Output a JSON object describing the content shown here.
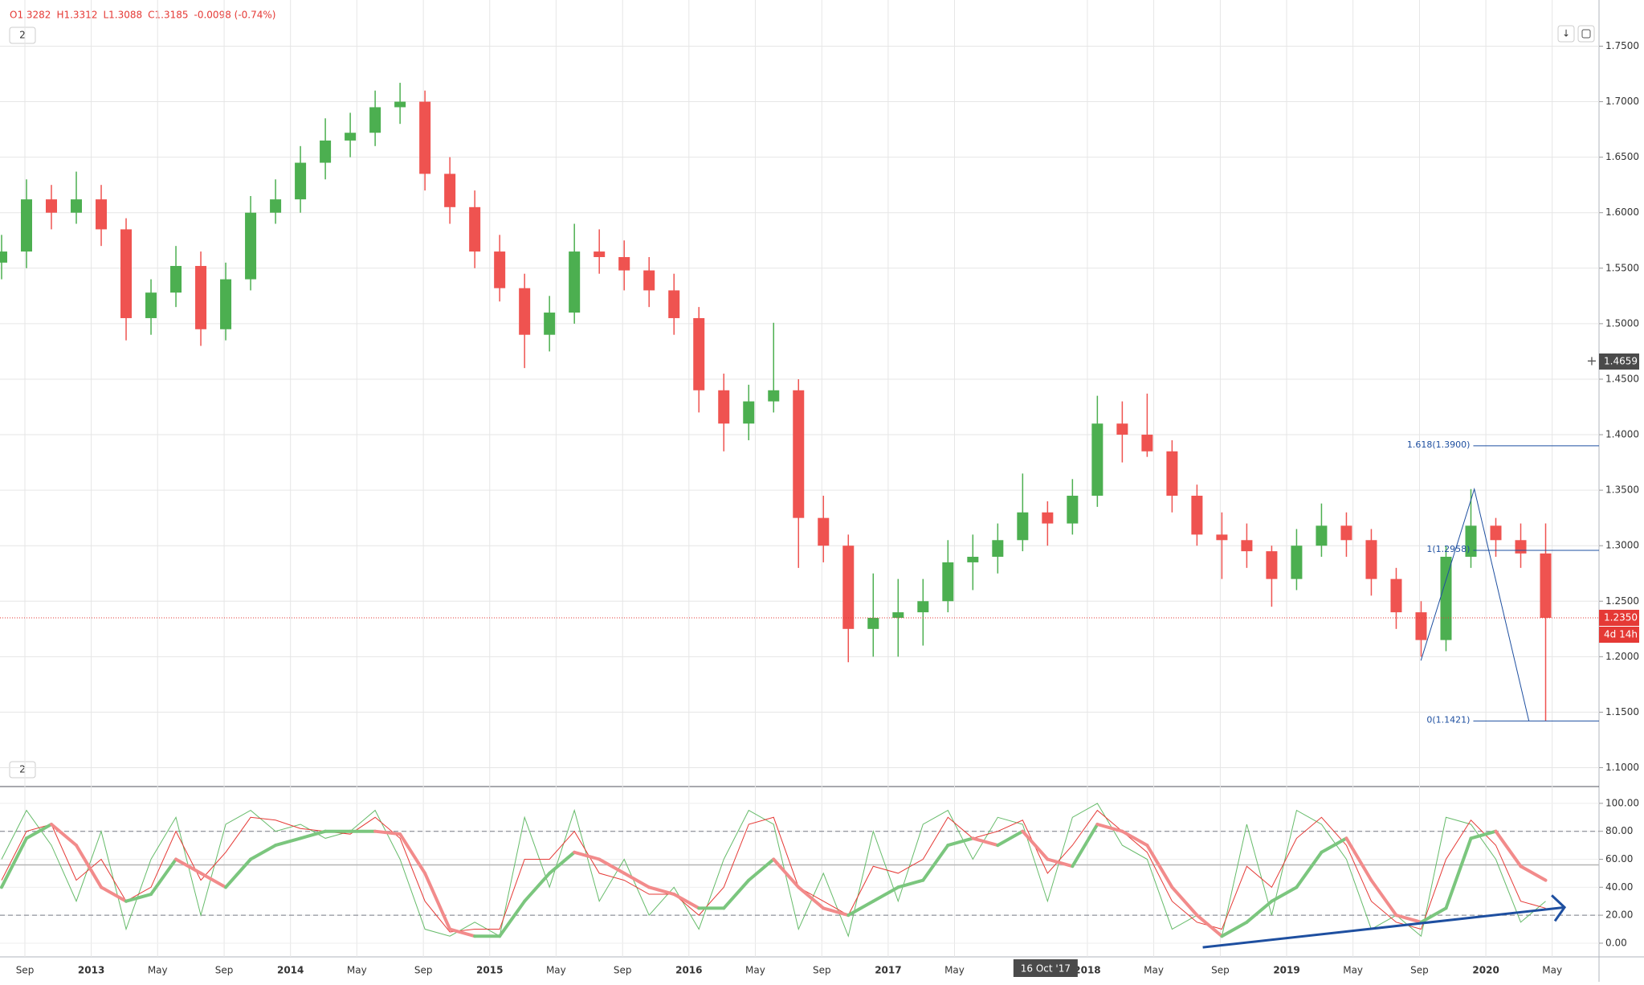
{
  "header": {
    "items": [
      "O1.3282",
      "H1.3312",
      "L1.3088",
      "C1.3185",
      "-0.0098 (-0.74%)"
    ],
    "pane_button": "2",
    "osc_button": "2"
  },
  "chart_data": {
    "type": "candlestick",
    "xlim": [
      2012.542,
      2020.568
    ],
    "xticks": [
      {
        "value": 2012.667,
        "label": "Sep"
      },
      {
        "value": 2013,
        "label": "2013"
      },
      {
        "value": 2013.333,
        "label": "May"
      },
      {
        "value": 2013.667,
        "label": "Sep"
      },
      {
        "value": 2014,
        "label": "2014"
      },
      {
        "value": 2014.333,
        "label": "May"
      },
      {
        "value": 2014.667,
        "label": "Sep"
      },
      {
        "value": 2015,
        "label": "2015"
      },
      {
        "value": 2015.333,
        "label": "May"
      },
      {
        "value": 2015.667,
        "label": "Sep"
      },
      {
        "value": 2016,
        "label": "2016"
      },
      {
        "value": 2016.333,
        "label": "May"
      },
      {
        "value": 2016.667,
        "label": "Sep"
      },
      {
        "value": 2017,
        "label": "2017"
      },
      {
        "value": 2017.333,
        "label": "May"
      },
      {
        "value": 2018,
        "label": "2018"
      },
      {
        "value": 2018.333,
        "label": "May"
      },
      {
        "value": 2018.667,
        "label": "Sep"
      },
      {
        "value": 2019,
        "label": "2019"
      },
      {
        "value": 2019.333,
        "label": "May"
      },
      {
        "value": 2019.667,
        "label": "Sep"
      },
      {
        "value": 2020,
        "label": "2020"
      },
      {
        "value": 2020.333,
        "label": "May"
      }
    ],
    "ylim": [
      1.083,
      1.7916
    ],
    "yticks": [
      {
        "value": 1.1,
        "label": "1.1000"
      },
      {
        "value": 1.15,
        "label": "1.1500"
      },
      {
        "value": 1.2,
        "label": "1.2000"
      },
      {
        "value": 1.25,
        "label": "1.2500"
      },
      {
        "value": 1.3,
        "label": "1.3000"
      },
      {
        "value": 1.35,
        "label": "1.3500"
      },
      {
        "value": 1.4,
        "label": "1.4000"
      },
      {
        "value": 1.45,
        "label": "1.4500"
      },
      {
        "value": 1.5,
        "label": "1.5000"
      },
      {
        "value": 1.55,
        "label": "1.5500"
      },
      {
        "value": 1.6,
        "label": "1.6000"
      },
      {
        "value": 1.65,
        "label": "1.6500"
      },
      {
        "value": 1.7,
        "label": "1.7000"
      },
      {
        "value": 1.75,
        "label": "1.7500"
      }
    ],
    "grid": true,
    "up_color": "#4caf50",
    "down_color": "#ef5350",
    "x": [
      2012.55,
      2012.675,
      2012.8,
      2012.925,
      2013.05,
      2013.175,
      2013.3,
      2013.425,
      2013.55,
      2013.675,
      2013.8,
      2013.925,
      2014.05,
      2014.175,
      2014.3,
      2014.425,
      2014.55,
      2014.675,
      2014.8,
      2014.925,
      2015.05,
      2015.175,
      2015.3,
      2015.425,
      2015.55,
      2015.675,
      2015.8,
      2015.925,
      2016.05,
      2016.175,
      2016.3,
      2016.425,
      2016.55,
      2016.675,
      2016.8,
      2016.925,
      2017.05,
      2017.175,
      2017.3,
      2017.425,
      2017.55,
      2017.675,
      2017.8,
      2017.925,
      2018.05,
      2018.175,
      2018.3,
      2018.425,
      2018.55,
      2018.675,
      2018.8,
      2018.925,
      2019.05,
      2019.175,
      2019.3,
      2019.425,
      2019.55,
      2019.675,
      2019.8,
      2019.925,
      2020.05,
      2020.175,
      2020.3
    ],
    "ohlc": [
      [
        1.555,
        1.58,
        1.54,
        1.565
      ],
      [
        1.565,
        1.63,
        1.55,
        1.612
      ],
      [
        1.612,
        1.625,
        1.585,
        1.6
      ],
      [
        1.6,
        1.637,
        1.59,
        1.612
      ],
      [
        1.612,
        1.625,
        1.57,
        1.585
      ],
      [
        1.585,
        1.595,
        1.485,
        1.505
      ],
      [
        1.505,
        1.54,
        1.49,
        1.528
      ],
      [
        1.528,
        1.57,
        1.515,
        1.552
      ],
      [
        1.552,
        1.565,
        1.48,
        1.495
      ],
      [
        1.495,
        1.555,
        1.485,
        1.54
      ],
      [
        1.54,
        1.615,
        1.53,
        1.6
      ],
      [
        1.6,
        1.63,
        1.59,
        1.612
      ],
      [
        1.612,
        1.66,
        1.6,
        1.645
      ],
      [
        1.645,
        1.685,
        1.63,
        1.665
      ],
      [
        1.665,
        1.69,
        1.65,
        1.672
      ],
      [
        1.672,
        1.71,
        1.66,
        1.695
      ],
      [
        1.695,
        1.717,
        1.68,
        1.7
      ],
      [
        1.7,
        1.71,
        1.62,
        1.635
      ],
      [
        1.635,
        1.65,
        1.59,
        1.605
      ],
      [
        1.605,
        1.62,
        1.55,
        1.565
      ],
      [
        1.565,
        1.58,
        1.52,
        1.532
      ],
      [
        1.532,
        1.545,
        1.46,
        1.49
      ],
      [
        1.49,
        1.525,
        1.475,
        1.51
      ],
      [
        1.51,
        1.59,
        1.5,
        1.565
      ],
      [
        1.565,
        1.585,
        1.545,
        1.56
      ],
      [
        1.56,
        1.575,
        1.53,
        1.548
      ],
      [
        1.548,
        1.56,
        1.515,
        1.53
      ],
      [
        1.53,
        1.545,
        1.49,
        1.505
      ],
      [
        1.505,
        1.515,
        1.42,
        1.44
      ],
      [
        1.44,
        1.455,
        1.385,
        1.41
      ],
      [
        1.41,
        1.445,
        1.395,
        1.43
      ],
      [
        1.43,
        1.5008,
        1.42,
        1.44
      ],
      [
        1.44,
        1.45,
        1.28,
        1.325
      ],
      [
        1.325,
        1.345,
        1.285,
        1.3
      ],
      [
        1.3,
        1.31,
        1.195,
        1.225
      ],
      [
        1.225,
        1.275,
        1.2,
        1.235
      ],
      [
        1.235,
        1.27,
        1.2,
        1.24
      ],
      [
        1.24,
        1.27,
        1.21,
        1.25
      ],
      [
        1.25,
        1.305,
        1.24,
        1.285
      ],
      [
        1.285,
        1.31,
        1.26,
        1.29
      ],
      [
        1.29,
        1.32,
        1.275,
        1.305
      ],
      [
        1.305,
        1.365,
        1.295,
        1.33
      ],
      [
        1.33,
        1.34,
        1.3,
        1.32
      ],
      [
        1.32,
        1.36,
        1.31,
        1.345
      ],
      [
        1.345,
        1.435,
        1.335,
        1.41
      ],
      [
        1.41,
        1.43,
        1.375,
        1.4
      ],
      [
        1.4,
        1.437,
        1.38,
        1.385
      ],
      [
        1.385,
        1.395,
        1.33,
        1.345
      ],
      [
        1.345,
        1.355,
        1.3,
        1.31
      ],
      [
        1.31,
        1.33,
        1.27,
        1.305
      ],
      [
        1.305,
        1.32,
        1.28,
        1.295
      ],
      [
        1.295,
        1.3,
        1.245,
        1.27
      ],
      [
        1.27,
        1.315,
        1.26,
        1.3
      ],
      [
        1.3,
        1.338,
        1.29,
        1.318
      ],
      [
        1.318,
        1.33,
        1.29,
        1.305
      ],
      [
        1.305,
        1.315,
        1.255,
        1.27
      ],
      [
        1.27,
        1.28,
        1.225,
        1.24
      ],
      [
        1.24,
        1.25,
        1.2,
        1.215
      ],
      [
        1.215,
        1.3,
        1.205,
        1.29
      ],
      [
        1.29,
        1.351,
        1.28,
        1.318
      ],
      [
        1.318,
        1.325,
        1.29,
        1.305
      ],
      [
        1.305,
        1.32,
        1.28,
        1.293
      ],
      [
        1.293,
        1.32,
        1.1421,
        1.235
      ]
    ],
    "price_label": {
      "value": 1.235,
      "label": "1.2350"
    },
    "countdown": "4d 14h",
    "crosshair": {
      "value": 1.4659,
      "label": "1.4659",
      "x_label": "16 Oct '17",
      "x_value": 2017.79
    },
    "fib": {
      "x_start": 2019.937,
      "color": "#1e4fa0",
      "levels": [
        {
          "value": 1.39,
          "label": "1.618(1.3900)"
        },
        {
          "value": 1.2958,
          "label": "1(1.2958)"
        },
        {
          "value": 1.1421,
          "label": "0(1.1421)"
        }
      ],
      "zigzag_x": [
        2019.674,
        2019.942,
        2020.216
      ],
      "zigzag_y": [
        1.1965,
        1.351,
        1.1421
      ]
    },
    "oscillator": {
      "ylim": [
        -9.8,
        112
      ],
      "yticks": [
        {
          "value": 0,
          "label": "0.00"
        },
        {
          "value": 20,
          "label": "20.00"
        },
        {
          "value": 40,
          "label": "40.00"
        },
        {
          "value": 60,
          "label": "60.00"
        },
        {
          "value": 80,
          "label": "80.00"
        },
        {
          "value": 100,
          "label": "100.00"
        }
      ],
      "levels": [
        80,
        20
      ],
      "mid_level": 56,
      "series": [
        {
          "color": "#66bb6a",
          "width": 1,
          "values": [
            60,
            95,
            70,
            30,
            80,
            10,
            60,
            90,
            20,
            85,
            95,
            80,
            85,
            75,
            80,
            95,
            60,
            10,
            5,
            15,
            5,
            90,
            40,
            95,
            30,
            60,
            20,
            40,
            10,
            60,
            95,
            85,
            10,
            50,
            5,
            80,
            30,
            85,
            95,
            60,
            90,
            85,
            30,
            90,
            100,
            70,
            60,
            10,
            20,
            5,
            85,
            20,
            95,
            85,
            60,
            10,
            20,
            5,
            90,
            85,
            60,
            15,
            30
          ]
        },
        {
          "color": "#e53935",
          "width": 1,
          "values": [
            45,
            80,
            85,
            45,
            60,
            30,
            40,
            80,
            45,
            65,
            90,
            88,
            82,
            80,
            78,
            90,
            75,
            30,
            8,
            10,
            10,
            60,
            60,
            80,
            50,
            45,
            35,
            35,
            20,
            40,
            85,
            90,
            40,
            30,
            20,
            55,
            50,
            60,
            90,
            75,
            80,
            88,
            50,
            70,
            95,
            80,
            65,
            30,
            15,
            10,
            55,
            40,
            75,
            90,
            70,
            30,
            15,
            10,
            60,
            88,
            70,
            30,
            25
          ]
        }
      ],
      "smooth": {
        "up_color": "#7bc67e",
        "down_color": "#f28b8b",
        "values": [
          40,
          75,
          85,
          70,
          40,
          30,
          35,
          60,
          50,
          40,
          60,
          70,
          75,
          80,
          80,
          80,
          78,
          50,
          10,
          5,
          5,
          30,
          50,
          65,
          60,
          50,
          40,
          35,
          25,
          25,
          45,
          60,
          40,
          25,
          20,
          30,
          40,
          45,
          70,
          75,
          70,
          80,
          60,
          55,
          85,
          80,
          70,
          40,
          20,
          5,
          15,
          30,
          40,
          65,
          75,
          45,
          20,
          15,
          25,
          75,
          80,
          55,
          45
        ]
      },
      "arrow": {
        "x": [
          2018.579,
          2020.395
        ],
        "y": [
          -3,
          25.6
        ],
        "color": "#1e4fa0"
      }
    }
  }
}
